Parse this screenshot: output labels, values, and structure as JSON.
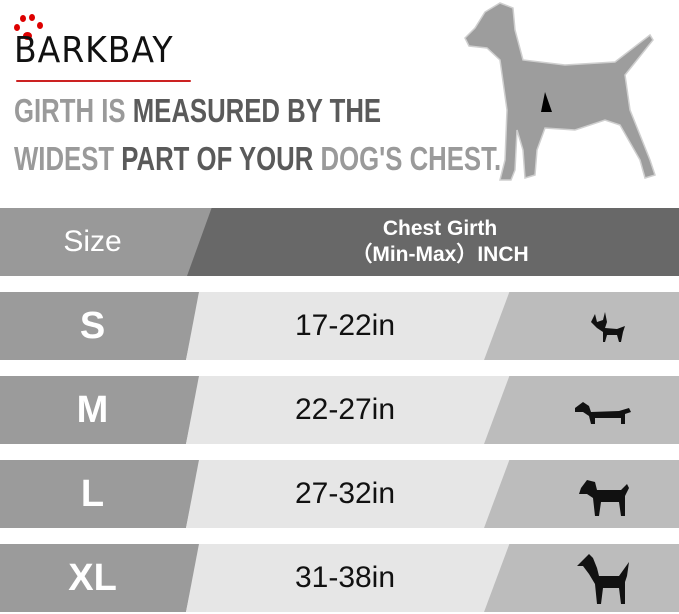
{
  "brand": {
    "logo": "BARKBAY"
  },
  "headline": {
    "line1": [
      {
        "text": "GIRTH IS ",
        "tone": "light"
      },
      {
        "text": "MEASURED BY THE",
        "tone": "dark"
      }
    ],
    "line2": [
      {
        "text": "WIDEST ",
        "tone": "light"
      },
      {
        "text": "PART OF YOUR ",
        "tone": "dark"
      },
      {
        "text": "DOG'S CHEST.",
        "tone": "light"
      }
    ]
  },
  "table": {
    "header": {
      "size": "Size",
      "girth_line1": "Chest Girth",
      "girth_line2": "（Min-Max）INCH"
    },
    "rows": [
      {
        "size": "S",
        "girth": "17-22in",
        "dog_icon": "chihuahua-icon"
      },
      {
        "size": "M",
        "girth": "22-27in",
        "dog_icon": "dachshund-icon"
      },
      {
        "size": "L",
        "girth": "27-32in",
        "dog_icon": "labrador-icon"
      },
      {
        "size": "XL",
        "girth": "31-38in",
        "dog_icon": "great-dane-icon"
      }
    ]
  },
  "colors": {
    "header_dark": "#686868",
    "size_cell": "#9b9b9b",
    "value_cell": "#e6e6e6",
    "icon_cell": "#bcbcbc",
    "logo_accent": "#dd0000"
  }
}
